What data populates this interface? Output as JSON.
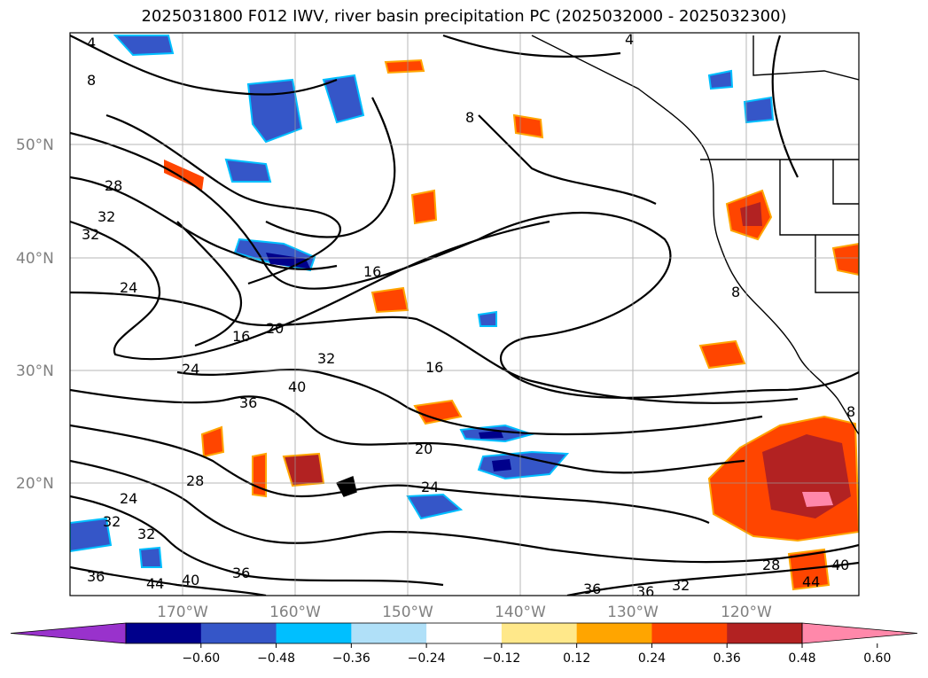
{
  "title": "2025031800 F012 IWV, river basin precipitation PC (2025032000 - 2025032300)",
  "map": {
    "lat_labels": [
      "50°N",
      "40°N",
      "30°N",
      "20°N"
    ],
    "lon_labels": [
      "170°W",
      "160°W",
      "150°W",
      "140°W",
      "130°W",
      "120°W"
    ],
    "iwv_contour_labels": [
      "4",
      "8",
      "8",
      "4",
      "28",
      "32",
      "32",
      "24",
      "16",
      "16",
      "20",
      "24",
      "32",
      "16",
      "40",
      "36",
      "20",
      "24",
      "28",
      "24",
      "32",
      "32",
      "36",
      "36",
      "44",
      "40",
      "28",
      "40",
      "44",
      "36",
      "36",
      "32",
      "8",
      "8"
    ]
  },
  "colorbar": {
    "colors": [
      "#9932cc",
      "#00008b",
      "#3556c8",
      "#00bfff",
      "#b0e0f8",
      "#ffffff",
      "#ffe88a",
      "#ffa500",
      "#ff4500",
      "#b22222",
      "#ff88aa"
    ],
    "tick_labels": [
      "−0.60",
      "−0.48",
      "−0.36",
      "−0.24",
      "−0.12",
      "0.12",
      "0.24",
      "0.36",
      "0.48",
      "0.60"
    ]
  }
}
